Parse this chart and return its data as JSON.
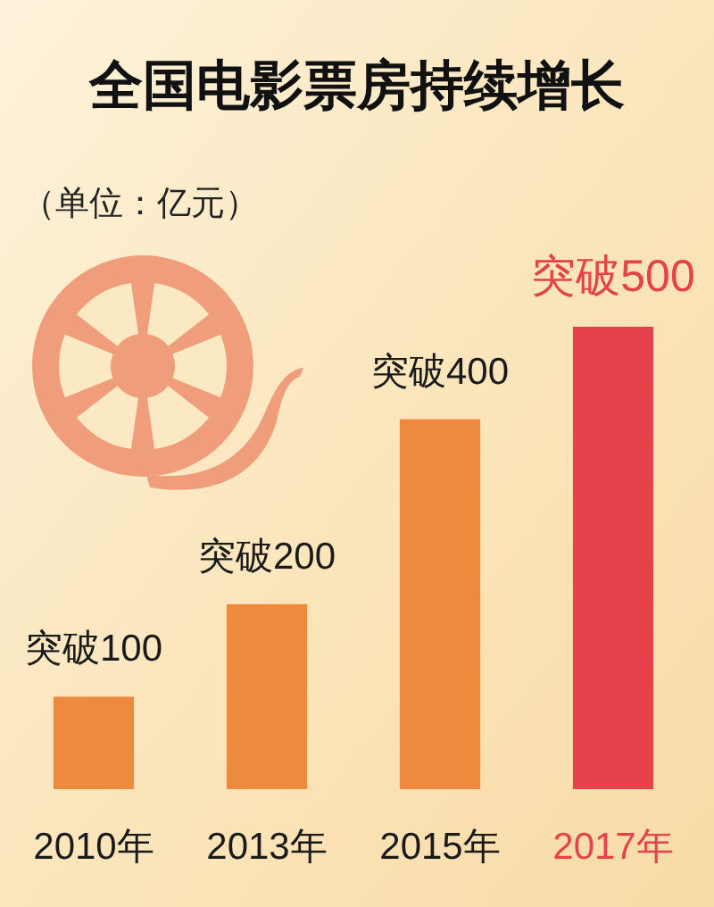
{
  "chart_data": {
    "type": "bar",
    "title": "全国电影票房持续增长",
    "annotations": [
      "（单位：亿元）"
    ],
    "categories": [
      "2010年",
      "2013年",
      "2015年",
      "2017年"
    ],
    "values": [
      100,
      200,
      400,
      500
    ],
    "colors": [
      "#ee8a3e",
      "#ee8a3e",
      "#ee8a3e",
      "#e6424b"
    ],
    "value_labels": [
      "突破100",
      "突破200",
      "突破400",
      "突破500"
    ]
  }
}
